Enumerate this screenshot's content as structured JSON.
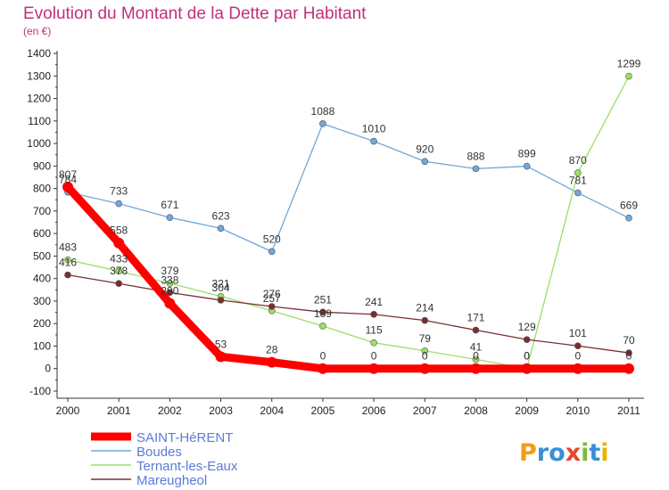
{
  "chart_data": {
    "type": "line",
    "title": "Evolution du Montant de la Dette par Habitant",
    "subtitle": "(en €)",
    "x": [
      "2000",
      "2001",
      "2002",
      "2003",
      "2004",
      "2005",
      "2006",
      "2007",
      "2008",
      "2009",
      "2010",
      "2011"
    ],
    "ylim": [
      -100,
      1400
    ],
    "yticks": [
      -100,
      0,
      100,
      200,
      300,
      400,
      500,
      600,
      700,
      800,
      900,
      1000,
      1100,
      1200,
      1300,
      1400
    ],
    "grid": false,
    "legend_position": "bottom-left",
    "series": [
      {
        "name": "SAINT-HéRENT",
        "color": "#ff0000",
        "values": [
          807,
          558,
          290,
          53,
          28,
          0,
          0,
          0,
          0,
          0,
          0,
          0
        ]
      },
      {
        "name": "Boudes",
        "color": "#6fa8dc",
        "values": [
          784,
          733,
          671,
          623,
          520,
          1088,
          1010,
          920,
          888,
          899,
          781,
          669
        ]
      },
      {
        "name": "Ternant-les-Eaux",
        "color": "#99e066",
        "values": [
          483,
          433,
          379,
          321,
          257,
          189,
          115,
          79,
          41,
          0,
          870,
          1299
        ]
      },
      {
        "name": "Mareugheol",
        "color": "#7b2e2e",
        "values": [
          416,
          378,
          338,
          304,
          276,
          251,
          241,
          214,
          171,
          129,
          101,
          70
        ]
      }
    ]
  },
  "branding": {
    "logo_text": "Proxiti"
  }
}
